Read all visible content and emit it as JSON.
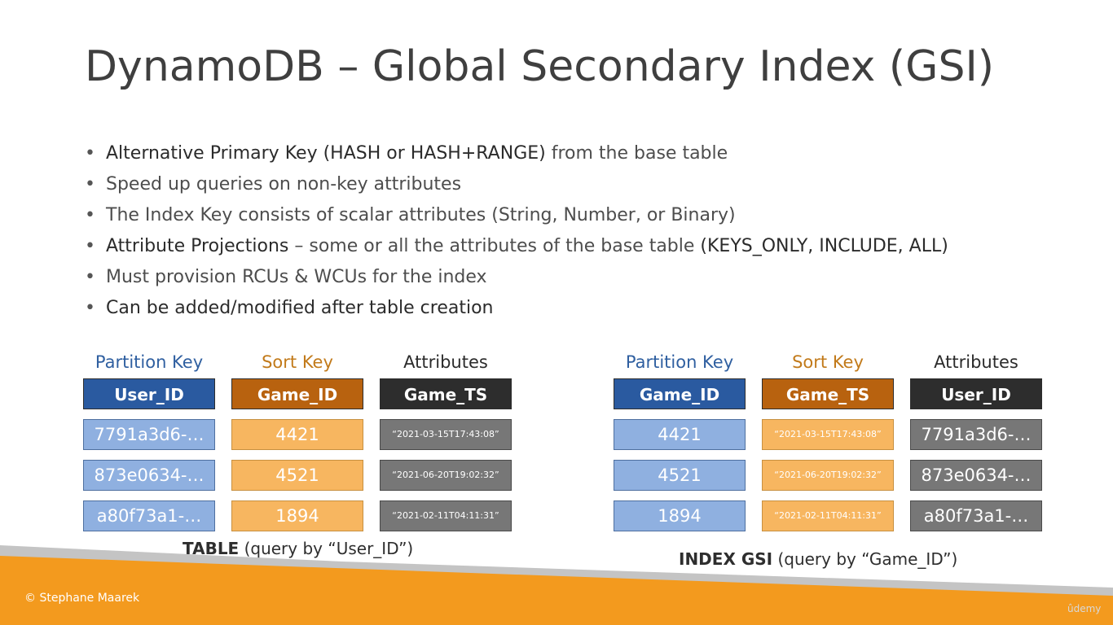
{
  "title": "DynamoDB – Global Secondary Index (GSI)",
  "bullets": [
    {
      "bold": "Alternative Primary Key (HASH or HASH+RANGE)",
      "rest": " from the base table",
      "tail": ""
    },
    {
      "bold": "",
      "rest": "Speed up queries on non-key attributes",
      "tail": ""
    },
    {
      "bold": "",
      "rest": "The Index Key consists of scalar attributes (String, Number, or Binary)",
      "tail": ""
    },
    {
      "bold": "Attribute Projections",
      "rest": " – some or all the attributes of the base table ",
      "tail": "(KEYS_ONLY, INCLUDE, ALL)"
    },
    {
      "bold": "",
      "rest": "Must provision RCUs & WCUs for the index",
      "tail": ""
    },
    {
      "bold": "Can be added/modified after table creation",
      "rest": "",
      "tail": ""
    }
  ],
  "table": {
    "headers": [
      "Partition Key",
      "Sort Key",
      "Attributes"
    ],
    "keys": [
      "User_ID",
      "Game_ID",
      "Game_TS"
    ],
    "rows": [
      [
        "7791a3d6-…",
        "4421",
        "“2021-03-15T17:43:08”"
      ],
      [
        "873e0634-…",
        "4521",
        "“2021-06-20T19:02:32”"
      ],
      [
        "a80f73a1-…",
        "1894",
        "“2021-02-11T04:11:31”"
      ]
    ],
    "caption_bold": "TABLE",
    "caption_rest": " (query by “User_ID”)"
  },
  "index": {
    "headers": [
      "Partition Key",
      "Sort Key",
      "Attributes"
    ],
    "keys": [
      "Game_ID",
      "Game_TS",
      "User_ID"
    ],
    "rows": [
      [
        "4421",
        "“2021-03-15T17:43:08”",
        "7791a3d6-…"
      ],
      [
        "4521",
        "“2021-06-20T19:02:32”",
        "873e0634-…"
      ],
      [
        "1894",
        "“2021-02-11T04:11:31”",
        "a80f73a1-…"
      ]
    ],
    "caption_bold": "INDEX GSI",
    "caption_rest": " (query by “Game_ID”)"
  },
  "colors": {
    "partition_header": "#2f5fa0",
    "sort_header": "#c27a1a",
    "attr_header": "#2b2b2b",
    "partition_key": "#2a5aa0",
    "sort_key": "#b8620f",
    "attr_key": "#2d2d2d",
    "partition_cell": "#8fb0e0",
    "sort_cell": "#f7b660",
    "attr_cell": "#777777",
    "footer_orange": "#f39a1e",
    "footer_gray": "#bdbdbd"
  },
  "footer": {
    "copyright": "© Stephane Maarek",
    "watermark": "ûdemy"
  }
}
